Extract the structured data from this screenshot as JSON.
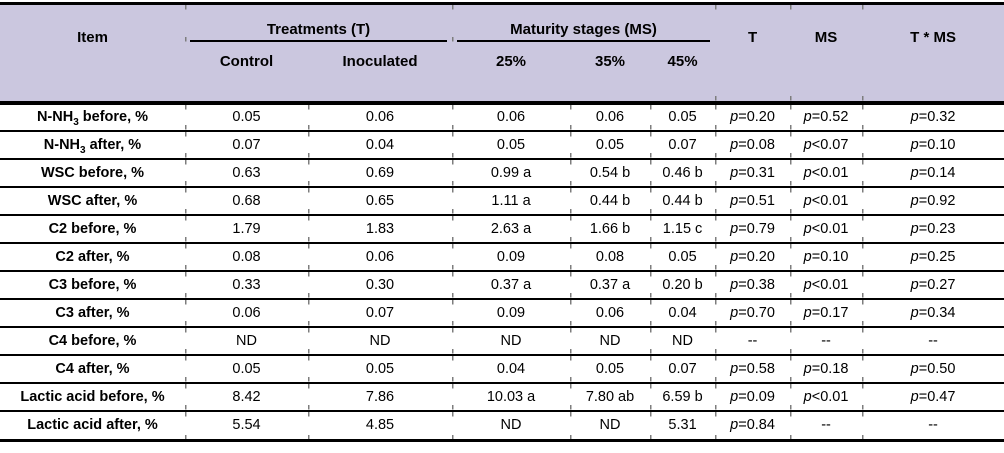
{
  "table": {
    "header": {
      "item": "Item",
      "groups": [
        {
          "label": "Treatments (T)",
          "cols": [
            "Control",
            "Inoculated"
          ]
        },
        {
          "label": "Maturity stages (MS)",
          "cols": [
            "25%",
            "35%",
            "45%"
          ]
        }
      ],
      "stats": [
        "T",
        "MS",
        "T * MS"
      ]
    },
    "rows": [
      {
        "label": [
          "N-NH",
          {
            "sub": "3"
          },
          " before, %"
        ],
        "values": [
          "0.05",
          "0.06",
          "0.06",
          "0.06",
          "0.05"
        ],
        "stats": [
          [
            "p",
            "=0.20"
          ],
          [
            "p",
            "=0.52"
          ],
          [
            "p",
            "=0.32"
          ]
        ]
      },
      {
        "label": [
          "N-NH",
          {
            "sub": "3"
          },
          " after, %"
        ],
        "values": [
          "0.07",
          "0.04",
          "0.05",
          "0.05",
          "0.07"
        ],
        "stats": [
          [
            "p",
            "=0.08"
          ],
          [
            "p",
            "<0.07"
          ],
          [
            "p",
            "=0.10"
          ]
        ]
      },
      {
        "label": [
          "WSC before, %"
        ],
        "values": [
          "0.63",
          "0.69",
          "0.99 a",
          "0.54 b",
          "0.46 b"
        ],
        "stats": [
          [
            "p",
            "=0.31"
          ],
          [
            "p",
            "<0.01"
          ],
          [
            "p",
            "=0.14"
          ]
        ]
      },
      {
        "label": [
          "WSC after, %"
        ],
        "values": [
          "0.68",
          "0.65",
          "1.11 a",
          "0.44 b",
          "0.44 b"
        ],
        "stats": [
          [
            "p",
            "=0.51"
          ],
          [
            "p",
            "<0.01"
          ],
          [
            "p",
            "=0.92"
          ]
        ]
      },
      {
        "label": [
          "C2 before, %"
        ],
        "values": [
          "1.79",
          "1.83",
          "2.63 a",
          "1.66 b",
          "1.15 c"
        ],
        "stats": [
          [
            "p",
            "=0.79"
          ],
          [
            "p",
            "<0.01"
          ],
          [
            "p",
            "=0.23"
          ]
        ]
      },
      {
        "label": [
          "C2 after, %"
        ],
        "values": [
          "0.08",
          "0.06",
          "0.09",
          "0.08",
          "0.05"
        ],
        "stats": [
          [
            "p",
            "=0.20"
          ],
          [
            "p",
            "=0.10"
          ],
          [
            "p",
            "=0.25"
          ]
        ]
      },
      {
        "label": [
          "C3 before, %"
        ],
        "values": [
          "0.33",
          "0.30",
          "0.37 a",
          "0.37 a",
          "0.20 b"
        ],
        "stats": [
          [
            "p",
            "=0.38"
          ],
          [
            "p",
            "<0.01"
          ],
          [
            "p",
            "=0.27"
          ]
        ]
      },
      {
        "label": [
          "C3 after, %"
        ],
        "values": [
          "0.06",
          "0.07",
          "0.09",
          "0.06",
          "0.04"
        ],
        "stats": [
          [
            "p",
            "=0.70"
          ],
          [
            "p",
            "=0.17"
          ],
          [
            "p",
            "=0.34"
          ]
        ]
      },
      {
        "label": [
          "C4 before, %"
        ],
        "values": [
          "ND",
          "ND",
          "ND",
          "ND",
          "ND"
        ],
        "stats": [
          [
            "",
            "--"
          ],
          [
            "",
            "--"
          ],
          [
            "",
            "--"
          ]
        ]
      },
      {
        "label": [
          "C4 after, %"
        ],
        "values": [
          "0.05",
          "0.05",
          "0.04",
          "0.05",
          "0.07"
        ],
        "stats": [
          [
            "p",
            "=0.58"
          ],
          [
            "p",
            "=0.18"
          ],
          [
            "p",
            "=0.50"
          ]
        ]
      },
      {
        "label": [
          "Lactic acid before, %"
        ],
        "values": [
          "8.42",
          "7.86",
          "10.03 a",
          "7.80 ab",
          "6.59 b"
        ],
        "stats": [
          [
            "p",
            "=0.09"
          ],
          [
            "p",
            "<0.01"
          ],
          [
            "p",
            "=0.47"
          ]
        ]
      },
      {
        "label": [
          "Lactic acid after, %"
        ],
        "values": [
          "5.54",
          "4.85",
          "ND",
          "ND",
          "5.31"
        ],
        "stats": [
          [
            "p",
            "=0.84"
          ],
          [
            "",
            "--"
          ],
          [
            "",
            "--"
          ]
        ]
      }
    ]
  },
  "colors": {
    "header_bg": "#cbc7df",
    "rule": "#000000",
    "tick": "#7d7d7d",
    "text": "#000000"
  }
}
